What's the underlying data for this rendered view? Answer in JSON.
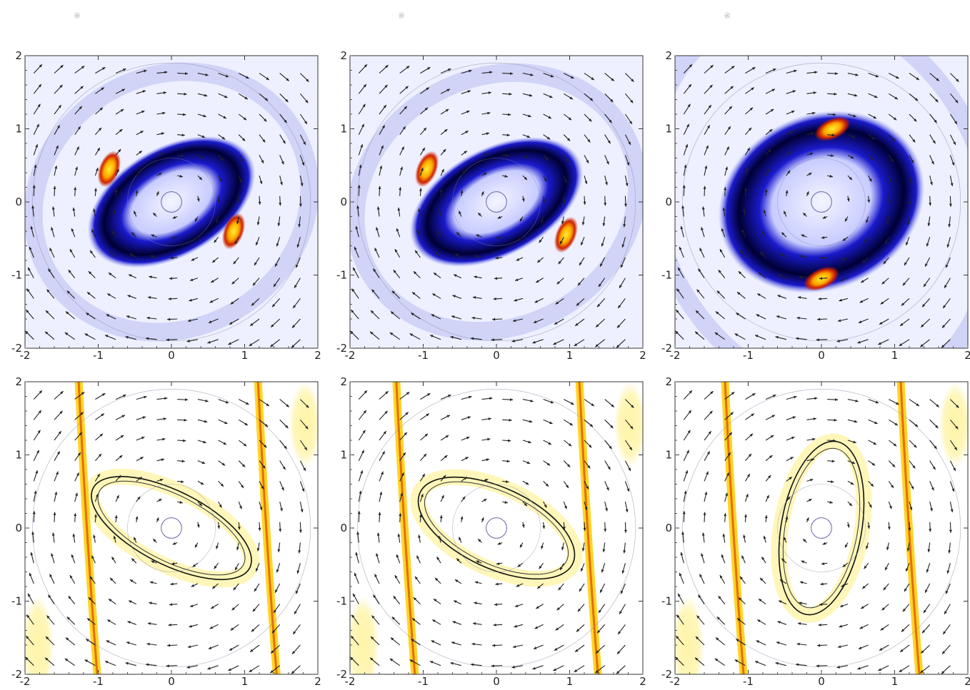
{
  "figure": {
    "corner_marks": [
      "※",
      "※",
      "※"
    ],
    "rows": 2,
    "cols": 3
  },
  "colors": {
    "density_low": "#eef0ff",
    "density_mid": "#1a1acc",
    "density_high": "#000033",
    "hot_red": "#cc2200",
    "hot_yellow": "#ffee33",
    "pale_yellow": "#fff4a8",
    "arrow": "#222222",
    "circle": "#8888aa"
  },
  "chart_data": [
    {
      "type": "heatmap",
      "row": 0,
      "col": 0,
      "colormap": "blue-black-red-yellow",
      "xlim": [
        -2,
        2
      ],
      "ylim": [
        -2,
        2
      ],
      "xticks": [
        "-2",
        "-1",
        "0",
        "1",
        "2"
      ],
      "yticks": [
        "-2",
        "-1",
        "0",
        "1",
        "2"
      ],
      "features": {
        "ring": {
          "a": 1.25,
          "b": 0.75,
          "angle_deg": -30
        },
        "hotspots": [
          [
            -0.85,
            0.45
          ],
          [
            0.85,
            -0.4
          ]
        ],
        "inner_circle_r": 0.14
      }
    },
    {
      "type": "heatmap",
      "row": 0,
      "col": 1,
      "colormap": "blue-black-red-yellow",
      "xlim": [
        -2,
        2
      ],
      "ylim": [
        -2,
        2
      ],
      "xticks": [
        "-2",
        "-1",
        "0",
        "1",
        "2"
      ],
      "yticks": [
        "-2",
        "-1",
        "0",
        "1",
        "2"
      ],
      "features": {
        "ring": {
          "a": 1.28,
          "b": 0.74,
          "angle_deg": -28
        },
        "hotspots": [
          [
            -0.95,
            0.45
          ],
          [
            0.95,
            -0.45
          ]
        ],
        "inner_circle_r": 0.14
      }
    },
    {
      "type": "heatmap",
      "row": 0,
      "col": 2,
      "colormap": "blue-black-red-yellow",
      "xlim": [
        -2,
        2
      ],
      "ylim": [
        -2,
        2
      ],
      "xticks": [
        "-2",
        "-1",
        "0",
        "1",
        "2"
      ],
      "yticks": [
        "-2",
        "-1",
        "0",
        "1",
        "2"
      ],
      "features": {
        "ring": {
          "a": 1.45,
          "b": 1.2,
          "angle_deg": -25
        },
        "hotspots": [
          [
            0.15,
            1.0
          ],
          [
            0.0,
            -1.05
          ]
        ],
        "inner_circle_r": 0.14
      }
    },
    {
      "type": "heatmap",
      "row": 1,
      "col": 0,
      "colormap": "white-yellow-red",
      "xlim": [
        -2,
        2
      ],
      "ylim": [
        -2,
        2
      ],
      "xticks": [
        "-2",
        "-1",
        "0",
        "1",
        "2"
      ],
      "yticks": [
        "-2",
        "-1",
        "0",
        "1",
        "2"
      ],
      "features": {
        "ellipse": {
          "a": 1.2,
          "b": 0.5,
          "angle_deg": -27
        },
        "stripes": [
          -1.15,
          1.3
        ],
        "inner_circle_r": 0.14
      }
    },
    {
      "type": "heatmap",
      "row": 1,
      "col": 1,
      "colormap": "white-yellow-red",
      "xlim": [
        -2,
        2
      ],
      "ylim": [
        -2,
        2
      ],
      "xticks": [
        "-2",
        "-1",
        "0",
        "1",
        "2"
      ],
      "yticks": [
        "-2",
        "-1",
        "0",
        "1",
        "2"
      ],
      "features": {
        "ellipse": {
          "a": 1.15,
          "b": 0.55,
          "angle_deg": -25
        },
        "stripes": [
          -1.25,
          1.25
        ],
        "inner_circle_r": 0.14
      }
    },
    {
      "type": "heatmap",
      "row": 1,
      "col": 2,
      "colormap": "white-yellow-red",
      "xlim": [
        -2,
        2
      ],
      "ylim": [
        -2,
        2
      ],
      "xticks": [
        "-2",
        "-1",
        "0",
        "1",
        "2"
      ],
      "yticks": [
        "-2",
        "-1",
        "0",
        "1",
        "2"
      ],
      "features": {
        "ellipse": {
          "a": 1.2,
          "b": 0.55,
          "angle_deg": 80
        },
        "stripes": [
          -1.2,
          1.2
        ],
        "inner_circle_r": 0.14
      }
    }
  ]
}
